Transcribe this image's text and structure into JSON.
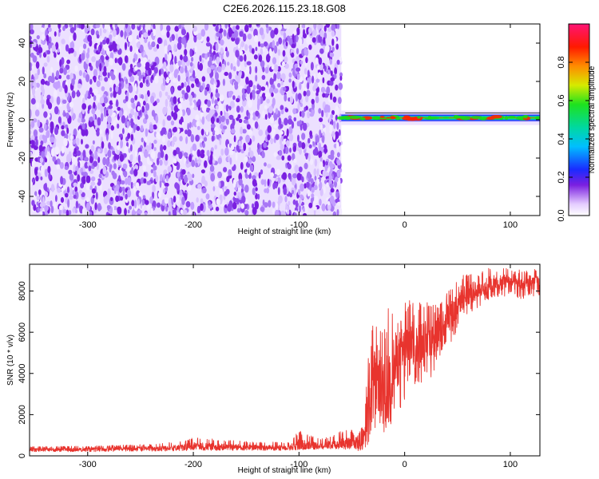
{
  "title": "C2E6.2026.115.23.18.G08",
  "colors": {
    "snr_line": "#e8342e",
    "noise_purple": "#7a1fe0",
    "frame": "#000000"
  },
  "chart_data": [
    {
      "type": "heatmap",
      "name": "spectrogram",
      "xlabel": "Height of straight line (km)",
      "ylabel": "Frequency (Hz)",
      "xlim": [
        -355,
        128
      ],
      "ylim": [
        -50,
        50
      ],
      "x_ticks": [
        -300,
        -200,
        -100,
        0,
        100
      ],
      "y_ticks": [
        -40,
        -20,
        0,
        20,
        40
      ],
      "noise_region_x": [
        -355,
        -60
      ],
      "signal_region_x": [
        -60,
        128
      ],
      "signal_center_freq_hz": 1,
      "colorbar": {
        "label": "Normalized spectral amplitude",
        "range": [
          0,
          1
        ],
        "ticks": [
          0.0,
          0.2,
          0.4,
          0.6,
          0.8
        ],
        "tick_labels": [
          "0.0",
          "0.2",
          "0.4",
          "0.6",
          "0.8"
        ]
      }
    },
    {
      "type": "line",
      "name": "snr",
      "xlabel": "Height of straight line (km)",
      "ylabel": "SNR (10 * v/v)",
      "xlim": [
        -355,
        128
      ],
      "ylim": [
        0,
        9300
      ],
      "x_ticks": [
        -300,
        -200,
        -100,
        0,
        100
      ],
      "y_ticks": [
        0,
        2000,
        4000,
        6000,
        8000
      ],
      "envelope": {
        "x": [
          -355,
          -300,
          -250,
          -210,
          -200,
          -150,
          -110,
          -100,
          -80,
          -60,
          -50,
          -45,
          -40,
          -35,
          -30,
          -25,
          -20,
          -15,
          -10,
          -5,
          0,
          5,
          10,
          15,
          20,
          25,
          30,
          35,
          40,
          45,
          50,
          60,
          70,
          80,
          90,
          100,
          110,
          120,
          128
        ],
        "low": [
          200,
          200,
          220,
          240,
          260,
          260,
          260,
          280,
          320,
          320,
          300,
          250,
          200,
          400,
          1200,
          1500,
          900,
          1300,
          1800,
          2200,
          2600,
          3600,
          3300,
          3400,
          4000,
          3600,
          4200,
          5000,
          5600,
          5400,
          6200,
          6900,
          7200,
          7600,
          7700,
          7800,
          7600,
          7700,
          7800
        ],
        "high": [
          450,
          480,
          550,
          700,
          900,
          700,
          650,
          1250,
          800,
          1200,
          1300,
          900,
          1500,
          4500,
          6500,
          7600,
          6400,
          7400,
          7500,
          6900,
          7600,
          7600,
          7400,
          7500,
          7700,
          7300,
          7500,
          7600,
          8000,
          8200,
          8800,
          9000,
          8800,
          9200,
          9100,
          9200,
          9000,
          9100,
          9000
        ],
        "mean": [
          300,
          320,
          360,
          420,
          480,
          420,
          400,
          550,
          500,
          600,
          650,
          500,
          700,
          2500,
          3500,
          3800,
          3000,
          3600,
          4400,
          4800,
          5000,
          5600,
          5200,
          5400,
          5900,
          5400,
          5800,
          6300,
          6800,
          6800,
          7500,
          7900,
          8000,
          8300,
          8400,
          8500,
          8300,
          8400,
          8400
        ]
      }
    }
  ]
}
